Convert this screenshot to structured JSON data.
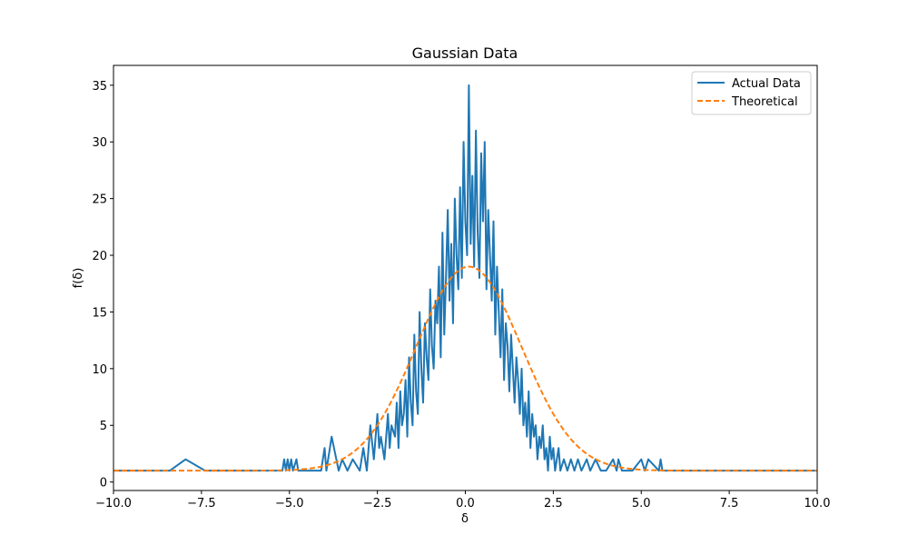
{
  "chart_data": {
    "type": "line",
    "title": "Gaussian Data",
    "xlabel": "δ",
    "ylabel": "f(δ)",
    "xlim": [
      -10.0,
      10.0
    ],
    "ylim": [
      -0.75,
      36.75
    ],
    "x_ticks": [
      -10.0,
      -7.5,
      -5.0,
      -2.5,
      0.0,
      2.5,
      5.0,
      7.5,
      10.0
    ],
    "x_tick_labels": [
      "−10.0",
      "−7.5",
      "−5.0",
      "−2.5",
      "0.0",
      "2.5",
      "5.0",
      "7.5",
      "10.0"
    ],
    "y_ticks": [
      0,
      5,
      10,
      15,
      20,
      25,
      30,
      35
    ],
    "y_tick_labels": [
      "0",
      "5",
      "10",
      "15",
      "20",
      "25",
      "30",
      "35"
    ],
    "grid": false,
    "legend": "top-right",
    "colors": {
      "actual": "#1f77b4",
      "theoretical": "#ff7f0e"
    },
    "series": [
      {
        "name": "Actual Data",
        "style": "solid",
        "x": [
          -10.0,
          -8.4,
          -7.95,
          -7.4,
          -5.2,
          -5.15,
          -5.1,
          -5.05,
          -5.0,
          -4.95,
          -4.9,
          -4.8,
          -4.75,
          -4.6,
          -4.1,
          -4.0,
          -3.95,
          -3.8,
          -3.6,
          -3.5,
          -3.35,
          -3.2,
          -3.0,
          -2.9,
          -2.8,
          -2.7,
          -2.6,
          -2.5,
          -2.45,
          -2.4,
          -2.3,
          -2.2,
          -2.15,
          -2.1,
          -2.0,
          -1.95,
          -1.9,
          -1.85,
          -1.8,
          -1.75,
          -1.7,
          -1.65,
          -1.6,
          -1.55,
          -1.5,
          -1.45,
          -1.4,
          -1.35,
          -1.3,
          -1.25,
          -1.2,
          -1.15,
          -1.1,
          -1.05,
          -1.0,
          -0.95,
          -0.9,
          -0.85,
          -0.8,
          -0.75,
          -0.7,
          -0.65,
          -0.6,
          -0.55,
          -0.5,
          -0.45,
          -0.4,
          -0.35,
          -0.3,
          -0.25,
          -0.2,
          -0.15,
          -0.1,
          -0.05,
          0.0,
          0.05,
          0.1,
          0.15,
          0.2,
          0.25,
          0.3,
          0.35,
          0.4,
          0.45,
          0.5,
          0.55,
          0.6,
          0.65,
          0.7,
          0.75,
          0.8,
          0.85,
          0.9,
          0.95,
          1.0,
          1.05,
          1.1,
          1.15,
          1.2,
          1.25,
          1.3,
          1.35,
          1.4,
          1.45,
          1.5,
          1.55,
          1.6,
          1.65,
          1.7,
          1.75,
          1.8,
          1.85,
          1.9,
          1.95,
          2.0,
          2.05,
          2.1,
          2.15,
          2.2,
          2.25,
          2.3,
          2.35,
          2.4,
          2.45,
          2.5,
          2.55,
          2.6,
          2.65,
          2.7,
          2.8,
          2.9,
          3.0,
          3.1,
          3.2,
          3.3,
          3.45,
          3.55,
          3.7,
          3.85,
          4.0,
          4.2,
          4.3,
          4.35,
          4.45,
          4.7,
          4.75,
          5.0,
          5.1,
          5.2,
          5.5,
          5.55,
          5.6,
          6.0,
          7.5,
          10.0
        ],
        "y": [
          1,
          1,
          2,
          1,
          1,
          2,
          1,
          2,
          1,
          2,
          1,
          2,
          1,
          1,
          1,
          3,
          1,
          4,
          1,
          2,
          1,
          2,
          1,
          3,
          1,
          5,
          2,
          6,
          3,
          4,
          2,
          6,
          3,
          5,
          4,
          7,
          3,
          8,
          5,
          6,
          9,
          4,
          11,
          7,
          5,
          13,
          8,
          6,
          15,
          10,
          7,
          14,
          11,
          9,
          17,
          12,
          10,
          16,
          14,
          19,
          11,
          22,
          13,
          18,
          24,
          16,
          21,
          14,
          25,
          20,
          17,
          26,
          18,
          30,
          23,
          20,
          35,
          21,
          27,
          19,
          31,
          22,
          18,
          29,
          23,
          30,
          17,
          24,
          20,
          16,
          23,
          13,
          19,
          15,
          11,
          17,
          9,
          14,
          12,
          8,
          13,
          10,
          7,
          11,
          9,
          6,
          10,
          5,
          7,
          4,
          8,
          3,
          6,
          4,
          5,
          2,
          4,
          3,
          5,
          2,
          3,
          1,
          4,
          2,
          3,
          1,
          2,
          3,
          1,
          2,
          1,
          2,
          1,
          2,
          1,
          2,
          1,
          2,
          1,
          1,
          2,
          1,
          2,
          1,
          1,
          1,
          2,
          1,
          2,
          1,
          2,
          1,
          1,
          1,
          1
        ]
      },
      {
        "name": "Theoretical",
        "style": "dashed",
        "model": {
          "amplitude": 18,
          "mean": 0.1,
          "sigma": 1.5,
          "offset": 1
        }
      }
    ]
  }
}
